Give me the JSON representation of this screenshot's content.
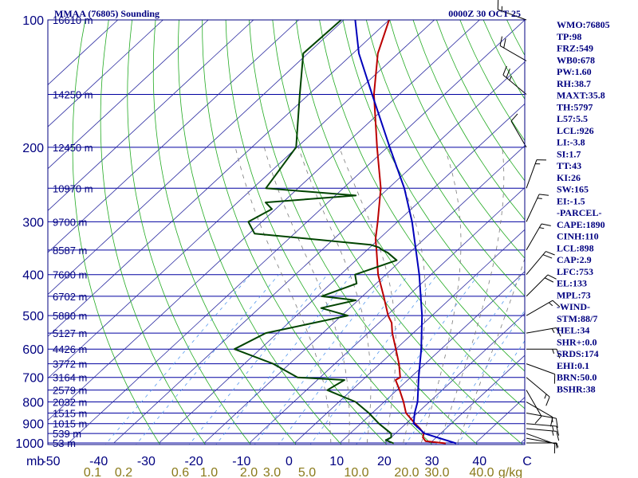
{
  "header": {
    "station": "MMAA (76805) Sounding",
    "time": "0000Z 30 OCT 25"
  },
  "indices": [
    "WMO:76805",
    "TP:98",
    "FRZ:549",
    "WB0:678",
    "PW:1.60",
    "RH:38.7",
    "MAXT:35.8",
    "TH:5797",
    "L57:5.5",
    "LCL:926",
    "LI:-3.8",
    "SI:1.7",
    "TT:43",
    "KI:26",
    "SW:165",
    "EI:-1.5",
    "-PARCEL-",
    "CAPE:1890",
    "CINH:110",
    "LCL:898",
    "CAP:2.9",
    "LFC:753",
    "EL:133",
    "MPL:73",
    "-WIND-",
    "STM:88/7",
    "HEL:34",
    "SHR+:0.0",
    "SRDS:174",
    "EHI:0.1",
    "BRN:50.0",
    "BSHR:38"
  ],
  "axes": {
    "pressure_unit": "mb",
    "mixing_ratio_unit": "g/kg",
    "pressure_ticks": [
      100,
      200,
      300,
      400,
      500,
      600,
      700,
      800,
      900,
      1000
    ],
    "temperature_ticks": [
      "-50",
      "-40",
      "-30",
      "-20",
      "-10",
      "0",
      "10",
      "20",
      "30",
      "40",
      "C"
    ],
    "mixing_ratio_ticks": [
      "0.1",
      "0.2",
      "0.6",
      "1.0",
      "2.0",
      "3.0",
      "5.0",
      "10.0",
      "20.0",
      "30.0",
      "40.0"
    ]
  },
  "colors": {
    "background": "#ffffff",
    "frame": "#000080",
    "isobar": "#0000a0",
    "isotherm": "#2a2aa0",
    "dry_adiabat": "#22aa22",
    "moist_adiabat": "#7a7a7a",
    "mixing_ratio": "#5599ee",
    "temperature": "#bb0000",
    "dewpoint": "#004400",
    "parcel": "#0000bb",
    "wind_barbs": "#000000",
    "wind_labels": "#8a7a1a",
    "text": "#000080"
  },
  "chart_data": {
    "type": "line",
    "title": "MMAA (76805) Sounding",
    "time": "0000Z 30 OCT 25",
    "y_axis": {
      "quantity": "pressure",
      "unit": "mb",
      "scale": "log",
      "range": [
        1000,
        100
      ]
    },
    "x_axis": {
      "quantity": "temperature",
      "unit": "C",
      "skewed": true,
      "range_at_1000mb": [
        -50,
        50
      ]
    },
    "height_labels": [
      {
        "p": 100,
        "label": "16610 m"
      },
      {
        "p": 150,
        "label": "14250 m"
      },
      {
        "p": 200,
        "label": "12450 m"
      },
      {
        "p": 250,
        "label": "10970 m"
      },
      {
        "p": 300,
        "label": "9700 m"
      },
      {
        "p": 350,
        "label": "8587 m"
      },
      {
        "p": 400,
        "label": "7600 m"
      },
      {
        "p": 450,
        "label": "6702 m"
      },
      {
        "p": 500,
        "label": "5880 m"
      },
      {
        "p": 550,
        "label": "5127 m"
      },
      {
        "p": 600,
        "label": "4426 m"
      },
      {
        "p": 650,
        "label": "3772 m"
      },
      {
        "p": 700,
        "label": "3164 m"
      },
      {
        "p": 750,
        "label": "2579 m"
      },
      {
        "p": 800,
        "label": "2032 m"
      },
      {
        "p": 850,
        "label": "1515 m"
      },
      {
        "p": 900,
        "label": "1015 m"
      },
      {
        "p": 950,
        "label": "539 m"
      },
      {
        "p": 1000,
        "label": "53 m"
      }
    ],
    "series": [
      {
        "name": "Temperature",
        "points": [
          {
            "p": 1002,
            "t": 33.5
          },
          {
            "p": 990,
            "t": 28.5
          },
          {
            "p": 970,
            "t": 27.0
          },
          {
            "p": 950,
            "t": 26.3
          },
          {
            "p": 925,
            "t": 24.3
          },
          {
            "p": 900,
            "t": 22.0
          },
          {
            "p": 850,
            "t": 17.5
          },
          {
            "p": 800,
            "t": 14.3
          },
          {
            "p": 750,
            "t": 10.6
          },
          {
            "p": 710,
            "t": 7.3
          },
          {
            "p": 700,
            "t": 7.7
          },
          {
            "p": 650,
            "t": 4.2
          },
          {
            "p": 600,
            "t": 0.0
          },
          {
            "p": 550,
            "t": -4.6
          },
          {
            "p": 520,
            "t": -7.2
          },
          {
            "p": 500,
            "t": -9.7
          },
          {
            "p": 450,
            "t": -15.3
          },
          {
            "p": 400,
            "t": -21.7
          },
          {
            "p": 350,
            "t": -27.9
          },
          {
            "p": 330,
            "t": -30.7
          },
          {
            "p": 300,
            "t": -34.4
          },
          {
            "p": 250,
            "t": -41.7
          },
          {
            "p": 200,
            "t": -52.3
          },
          {
            "p": 150,
            "t": -65.6
          },
          {
            "p": 120,
            "t": -74.5
          },
          {
            "p": 100,
            "t": -80.0
          }
        ]
      },
      {
        "name": "Dewpoint",
        "points": [
          {
            "p": 1002,
            "t": 22.0
          },
          {
            "p": 985,
            "t": 19.5
          },
          {
            "p": 970,
            "t": 20.0
          },
          {
            "p": 950,
            "t": 19.1
          },
          {
            "p": 900,
            "t": 14.0
          },
          {
            "p": 850,
            "t": 9.3
          },
          {
            "p": 800,
            "t": 3.7
          },
          {
            "p": 750,
            "t": -5.4
          },
          {
            "p": 710,
            "t": -4.0
          },
          {
            "p": 700,
            "t": -15.0
          },
          {
            "p": 650,
            "t": -23.6
          },
          {
            "p": 600,
            "t": -35.7
          },
          {
            "p": 550,
            "t": -32.6
          },
          {
            "p": 500,
            "t": -18.6
          },
          {
            "p": 480,
            "t": -26.3
          },
          {
            "p": 460,
            "t": -20.5
          },
          {
            "p": 450,
            "t": -29.0
          },
          {
            "p": 420,
            "t": -24.3
          },
          {
            "p": 400,
            "t": -26.8
          },
          {
            "p": 370,
            "t": -21.0
          },
          {
            "p": 355,
            "t": -24.8
          },
          {
            "p": 350,
            "t": -26.6
          },
          {
            "p": 345,
            "t": -28.0
          },
          {
            "p": 340,
            "t": -30.5
          },
          {
            "p": 320,
            "t": -58.8
          },
          {
            "p": 300,
            "t": -63.0
          },
          {
            "p": 280,
            "t": -60.8
          },
          {
            "p": 270,
            "t": -63.8
          },
          {
            "p": 260,
            "t": -45.5
          },
          {
            "p": 250,
            "t": -67.1
          },
          {
            "p": 200,
            "t": -70.2
          },
          {
            "p": 150,
            "t": -82.0
          },
          {
            "p": 120,
            "t": -91.0
          },
          {
            "p": 100,
            "t": -90.6
          }
        ]
      },
      {
        "name": "Parcel",
        "points": [
          {
            "p": 1002,
            "t": 35.8
          },
          {
            "p": 950,
            "t": 26.5
          },
          {
            "p": 900,
            "t": 21.7
          },
          {
            "p": 850,
            "t": 19.4
          },
          {
            "p": 800,
            "t": 17.4
          },
          {
            "p": 700,
            "t": 11.8
          },
          {
            "p": 600,
            "t": 5.6
          },
          {
            "p": 500,
            "t": -2.2
          },
          {
            "p": 400,
            "t": -12.6
          },
          {
            "p": 300,
            "t": -26.8
          },
          {
            "p": 250,
            "t": -36.5
          },
          {
            "p": 200,
            "t": -49.5
          },
          {
            "p": 150,
            "t": -66.0
          },
          {
            "p": 120,
            "t": -78.7
          },
          {
            "p": 100,
            "t": -87.5
          }
        ]
      }
    ],
    "wind_barbs": [
      {
        "p": 1000,
        "dir": 90,
        "kt": 5
      },
      {
        "p": 975,
        "dir": 100,
        "kt": 5
      },
      {
        "p": 950,
        "dir": 110,
        "kt": 10
      },
      {
        "p": 925,
        "dir": 95,
        "kt": 15
      },
      {
        "p": 900,
        "dir": 95,
        "kt": 15
      },
      {
        "p": 850,
        "dir": 100,
        "kt": 15
      },
      {
        "p": 800,
        "dir": 120,
        "kt": 10
      },
      {
        "p": 750,
        "dir": 150,
        "kt": 10
      },
      {
        "p": 700,
        "dir": 130,
        "kt": 15
      },
      {
        "p": 650,
        "dir": 110,
        "kt": 10
      },
      {
        "p": 600,
        "dir": 90,
        "kt": 15
      },
      {
        "p": 550,
        "dir": 80,
        "kt": 15
      },
      {
        "p": 500,
        "dir": 60,
        "kt": 15
      },
      {
        "p": 450,
        "dir": 45,
        "kt": 20
      },
      {
        "p": 400,
        "dir": 40,
        "kt": 20
      },
      {
        "p": 350,
        "dir": 30,
        "kt": 15
      },
      {
        "p": 300,
        "dir": 25,
        "kt": 15
      },
      {
        "p": 250,
        "dir": 20,
        "kt": 15
      },
      {
        "p": 200,
        "dir": 330,
        "kt": 10
      },
      {
        "p": 150,
        "dir": 310,
        "kt": 25
      },
      {
        "p": 125,
        "dir": 300,
        "kt": 20
      },
      {
        "p": 100,
        "dir": 290,
        "kt": 15
      }
    ]
  }
}
